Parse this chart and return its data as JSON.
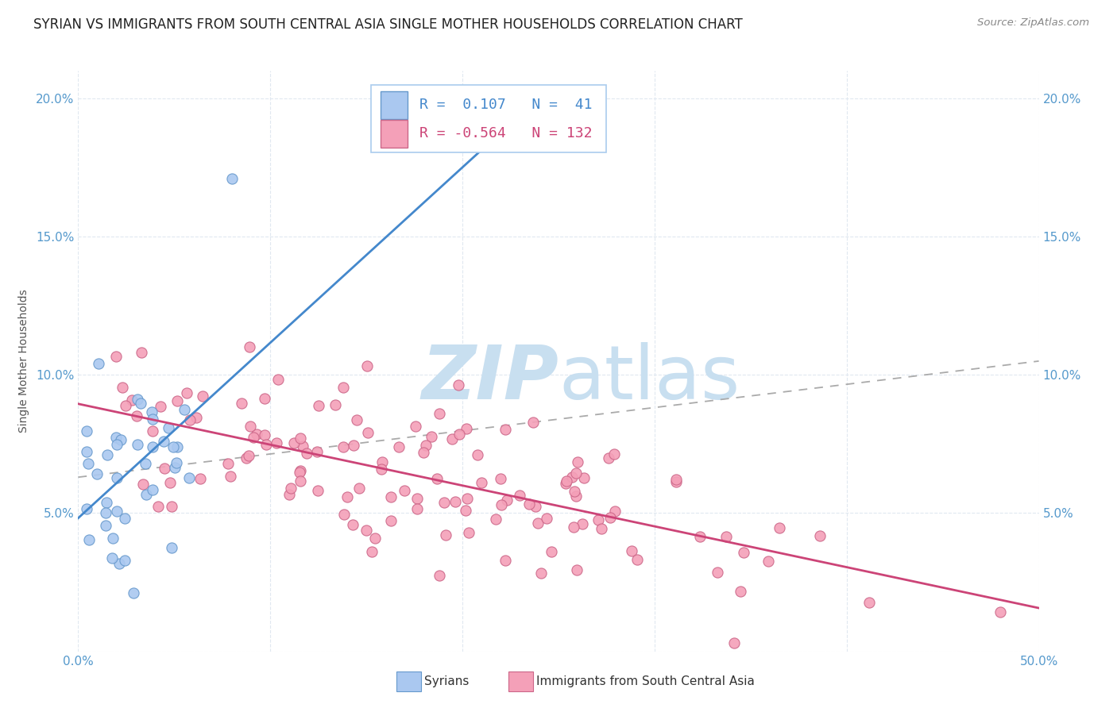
{
  "title": "SYRIAN VS IMMIGRANTS FROM SOUTH CENTRAL ASIA SINGLE MOTHER HOUSEHOLDS CORRELATION CHART",
  "source": "Source: ZipAtlas.com",
  "ylabel": "Single Mother Households",
  "xlim": [
    0.0,
    0.5
  ],
  "ylim": [
    0.0,
    0.21
  ],
  "x_ticks": [
    0.0,
    0.1,
    0.2,
    0.3,
    0.4,
    0.5
  ],
  "x_tick_labels": [
    "0.0%",
    "",
    "",
    "",
    "",
    "50.0%"
  ],
  "y_ticks": [
    0.0,
    0.05,
    0.1,
    0.15,
    0.2
  ],
  "y_tick_labels": [
    "",
    "5.0%",
    "10.0%",
    "15.0%",
    "20.0%"
  ],
  "syrian_color": "#aac8f0",
  "syrian_edge_color": "#6699cc",
  "pink_color": "#f4a0b8",
  "pink_edge_color": "#cc6688",
  "syrian_R": 0.107,
  "syrian_N": 41,
  "pink_R": -0.564,
  "pink_N": 132,
  "background_color": "#ffffff",
  "grid_color": "#e0e8f0",
  "watermark_zip": "ZIP",
  "watermark_atlas": "atlas",
  "watermark_color_zip": "#c8dff0",
  "watermark_color_atlas": "#c8dff0",
  "title_fontsize": 12,
  "axis_label_fontsize": 10,
  "tick_fontsize": 11,
  "legend_fontsize": 13,
  "tick_color": "#5599cc",
  "source_color": "#888888"
}
